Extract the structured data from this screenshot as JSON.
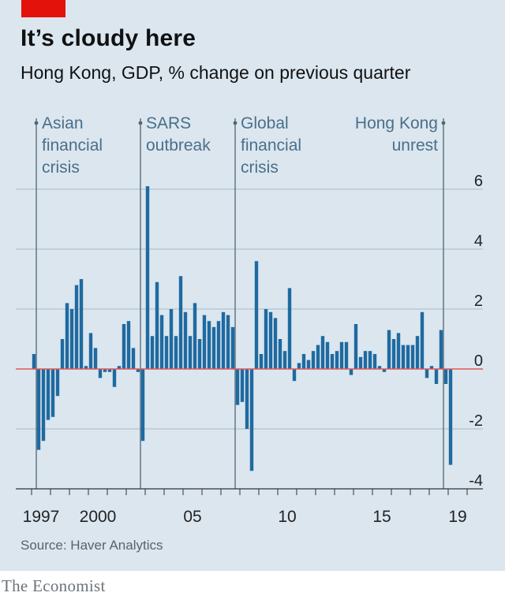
{
  "header": {
    "title": "It’s cloudy here",
    "subtitle": "Hong Kong, GDP, % change on previous quarter"
  },
  "footer": {
    "source": "Source: Haver Analytics",
    "brand": "The Economist"
  },
  "colors": {
    "background": "#dbe6ef",
    "bar": "#1f6aa0",
    "zero_line": "#e55757",
    "accent": "#e3120b",
    "annotation": "#4a6f8a"
  },
  "chart_data": {
    "type": "bar",
    "title": "It’s cloudy here",
    "subtitle": "Hong Kong, GDP, % change on previous quarter",
    "xlabel": "",
    "ylabel": "",
    "ylim": [
      -4,
      6
    ],
    "yticks": [
      -4,
      -2,
      0,
      2,
      4,
      6
    ],
    "grid": true,
    "y_axis_side": "right",
    "x_start": "1997 Q1",
    "x_tick_labels": [
      {
        "label": "1997",
        "quarter_index": 0
      },
      {
        "label": "2000",
        "quarter_index": 12
      },
      {
        "label": "05",
        "quarter_index": 32
      },
      {
        "label": "10",
        "quarter_index": 52
      },
      {
        "label": "15",
        "quarter_index": 72
      },
      {
        "label": "19",
        "quarter_index": 88
      }
    ],
    "annotations": [
      {
        "label": "Asian financial crisis",
        "lines": [
          "Asian",
          "financial",
          "crisis"
        ],
        "quarter_index": 0.5,
        "align": "left"
      },
      {
        "label": "SARS outbreak",
        "lines": [
          "SARS",
          "outbreak"
        ],
        "quarter_index": 22.5,
        "align": "left"
      },
      {
        "label": "Global financial crisis",
        "lines": [
          "Global",
          "financial",
          "crisis"
        ],
        "quarter_index": 42.5,
        "align": "left"
      },
      {
        "label": "Hong Kong unrest",
        "lines": [
          "Hong Kong",
          "unrest"
        ],
        "quarter_index": 86.5,
        "align": "right"
      }
    ],
    "values": [
      0.5,
      -2.7,
      -2.4,
      -1.7,
      -1.6,
      -0.9,
      1.0,
      2.2,
      2.0,
      2.8,
      3.0,
      0.1,
      1.2,
      0.7,
      -0.3,
      -0.1,
      -0.1,
      -0.6,
      0.1,
      1.5,
      1.6,
      0.7,
      -0.1,
      -2.4,
      6.1,
      1.1,
      2.9,
      1.8,
      1.1,
      2.0,
      1.1,
      3.1,
      1.9,
      1.1,
      2.2,
      1.0,
      1.8,
      1.6,
      1.4,
      1.6,
      1.9,
      1.8,
      1.4,
      -1.2,
      -1.1,
      -2.0,
      -3.4,
      3.6,
      0.5,
      2.0,
      1.9,
      1.7,
      1.0,
      0.6,
      2.7,
      -0.4,
      0.2,
      0.5,
      0.3,
      0.6,
      0.8,
      1.1,
      0.9,
      0.5,
      0.6,
      0.9,
      0.9,
      -0.2,
      1.5,
      0.4,
      0.6,
      0.6,
      0.5,
      0.1,
      -0.1,
      1.3,
      1.0,
      1.2,
      0.8,
      0.8,
      0.8,
      1.1,
      1.9,
      -0.3,
      0.1,
      -0.5,
      1.3,
      -0.5,
      -3.2
    ]
  }
}
